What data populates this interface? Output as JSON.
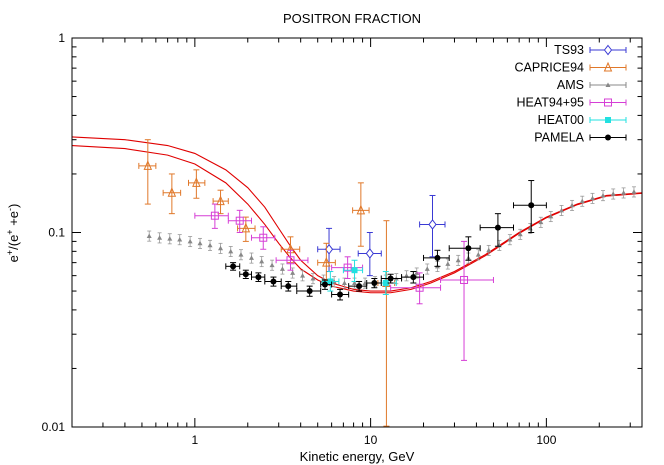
{
  "chart_data": {
    "type": "scatter",
    "title": "POSITRON FRACTION",
    "xlabel": "Kinetic energy, GeV",
    "ylabel_parts": [
      "e",
      "+",
      "/(e",
      "+",
      " +e",
      "-",
      ")"
    ],
    "xscale": "log",
    "yscale": "log",
    "xlim": [
      0.2,
      350
    ],
    "ylim": [
      0.01,
      1
    ],
    "x_ticks": [
      {
        "v": 1,
        "label": "1"
      },
      {
        "v": 10,
        "label": "10"
      },
      {
        "v": 100,
        "label": "100"
      }
    ],
    "y_ticks": [
      {
        "v": 0.01,
        "label": "0.01"
      },
      {
        "v": 0.1,
        "label": "0.1"
      },
      {
        "v": 1,
        "label": "1"
      }
    ],
    "legend_position": "top-right",
    "series": [
      {
        "name": "TS93",
        "color": "#3a3ad4",
        "marker": "diamond-open",
        "points": [
          {
            "x": 5.8,
            "y": 0.082,
            "ylo": 0.063,
            "yhi": 0.105,
            "xlo": 5.0,
            "xhi": 6.7
          },
          {
            "x": 9.9,
            "y": 0.078,
            "ylo": 0.06,
            "yhi": 0.1,
            "xlo": 8.5,
            "xhi": 11.5
          },
          {
            "x": 22.5,
            "y": 0.11,
            "ylo": 0.075,
            "yhi": 0.155,
            "xlo": 19,
            "xhi": 26.5
          }
        ]
      },
      {
        "name": "CAPRICE94",
        "color": "#e0782a",
        "marker": "triangle-open",
        "points": [
          {
            "x": 0.54,
            "y": 0.22,
            "ylo": 0.14,
            "yhi": 0.3,
            "xlo": 0.48,
            "xhi": 0.6
          },
          {
            "x": 0.74,
            "y": 0.16,
            "ylo": 0.125,
            "yhi": 0.2,
            "xlo": 0.66,
            "xhi": 0.83
          },
          {
            "x": 1.02,
            "y": 0.18,
            "ylo": 0.15,
            "yhi": 0.21,
            "xlo": 0.92,
            "xhi": 1.14
          },
          {
            "x": 1.4,
            "y": 0.145,
            "ylo": 0.125,
            "yhi": 0.165,
            "xlo": 1.27,
            "xhi": 1.55
          },
          {
            "x": 1.95,
            "y": 0.105,
            "ylo": 0.09,
            "yhi": 0.12,
            "xlo": 1.75,
            "xhi": 2.2
          },
          {
            "x": 3.5,
            "y": 0.082,
            "ylo": 0.07,
            "yhi": 0.095,
            "xlo": 3.1,
            "xhi": 3.95
          },
          {
            "x": 5.6,
            "y": 0.07,
            "ylo": 0.055,
            "yhi": 0.088,
            "xlo": 5.0,
            "xhi": 6.3
          },
          {
            "x": 8.8,
            "y": 0.13,
            "ylo": 0.085,
            "yhi": 0.18,
            "xlo": 7.9,
            "xhi": 9.8
          },
          {
            "x": 12.3,
            "y": 0.055,
            "ylo": 0.0101,
            "yhi": 0.115,
            "xlo": 11.0,
            "xhi": 13.7
          }
        ]
      },
      {
        "name": "AMS",
        "color": "#888888",
        "marker": "triangle-filled",
        "points": [
          {
            "x": 0.55,
            "y": 0.096
          },
          {
            "x": 0.63,
            "y": 0.094
          },
          {
            "x": 0.72,
            "y": 0.093
          },
          {
            "x": 0.82,
            "y": 0.092
          },
          {
            "x": 0.94,
            "y": 0.09
          },
          {
            "x": 1.07,
            "y": 0.088
          },
          {
            "x": 1.22,
            "y": 0.086
          },
          {
            "x": 1.4,
            "y": 0.083
          },
          {
            "x": 1.6,
            "y": 0.08
          },
          {
            "x": 1.83,
            "y": 0.077
          },
          {
            "x": 2.1,
            "y": 0.074
          },
          {
            "x": 2.4,
            "y": 0.071
          },
          {
            "x": 2.75,
            "y": 0.068
          },
          {
            "x": 3.15,
            "y": 0.065
          },
          {
            "x": 3.6,
            "y": 0.062
          },
          {
            "x": 4.1,
            "y": 0.06
          },
          {
            "x": 4.7,
            "y": 0.058
          },
          {
            "x": 5.4,
            "y": 0.057
          },
          {
            "x": 6.2,
            "y": 0.056
          },
          {
            "x": 7.1,
            "y": 0.055
          },
          {
            "x": 8.1,
            "y": 0.055
          },
          {
            "x": 9.3,
            "y": 0.055
          },
          {
            "x": 10.6,
            "y": 0.056
          },
          {
            "x": 12.2,
            "y": 0.057
          },
          {
            "x": 14,
            "y": 0.058
          },
          {
            "x": 16,
            "y": 0.06
          },
          {
            "x": 18.3,
            "y": 0.062
          },
          {
            "x": 21,
            "y": 0.065
          },
          {
            "x": 24,
            "y": 0.067
          },
          {
            "x": 27.5,
            "y": 0.069
          },
          {
            "x": 31.5,
            "y": 0.072
          },
          {
            "x": 36,
            "y": 0.074
          },
          {
            "x": 41,
            "y": 0.077
          },
          {
            "x": 47,
            "y": 0.081
          },
          {
            "x": 54,
            "y": 0.086
          },
          {
            "x": 62,
            "y": 0.092
          },
          {
            "x": 71,
            "y": 0.098
          },
          {
            "x": 81,
            "y": 0.105
          },
          {
            "x": 93,
            "y": 0.113
          },
          {
            "x": 106,
            "y": 0.121
          },
          {
            "x": 122,
            "y": 0.13
          },
          {
            "x": 140,
            "y": 0.138
          },
          {
            "x": 160,
            "y": 0.145
          },
          {
            "x": 183,
            "y": 0.15
          },
          {
            "x": 210,
            "y": 0.155
          },
          {
            "x": 240,
            "y": 0.158
          },
          {
            "x": 275,
            "y": 0.16
          },
          {
            "x": 315,
            "y": 0.162
          }
        ]
      },
      {
        "name": "HEAT94+95",
        "color": "#d63fd6",
        "marker": "square-open",
        "points": [
          {
            "x": 1.3,
            "y": 0.122,
            "ylo": 0.105,
            "yhi": 0.14,
            "xlo": 1.0,
            "xhi": 1.55
          },
          {
            "x": 1.8,
            "y": 0.115,
            "ylo": 0.1,
            "yhi": 0.13,
            "xlo": 1.55,
            "xhi": 2.1
          },
          {
            "x": 2.45,
            "y": 0.094,
            "ylo": 0.082,
            "yhi": 0.107,
            "xlo": 2.1,
            "xhi": 2.85
          },
          {
            "x": 3.5,
            "y": 0.072,
            "ylo": 0.064,
            "yhi": 0.081,
            "xlo": 2.9,
            "xhi": 4.4
          },
          {
            "x": 7.4,
            "y": 0.066,
            "ylo": 0.058,
            "yhi": 0.075,
            "xlo": 6.0,
            "xhi": 9.0
          },
          {
            "x": 19,
            "y": 0.052,
            "ylo": 0.043,
            "yhi": 0.062,
            "xlo": 13,
            "xhi": 25
          },
          {
            "x": 34,
            "y": 0.057,
            "ylo": 0.022,
            "yhi": 0.09,
            "xlo": 25,
            "xhi": 50
          }
        ]
      },
      {
        "name": "HEAT00",
        "color": "#22e0e0",
        "marker": "square-filled",
        "points": [
          {
            "x": 5.9,
            "y": 0.056,
            "ylo": 0.05,
            "yhi": 0.063,
            "xlo": 5.3,
            "xhi": 6.6
          },
          {
            "x": 8.1,
            "y": 0.064,
            "ylo": 0.056,
            "yhi": 0.072,
            "xlo": 7.0,
            "xhi": 9.0
          },
          {
            "x": 12.2,
            "y": 0.055,
            "ylo": 0.048,
            "yhi": 0.063,
            "xlo": 10.5,
            "xhi": 14.0
          }
        ]
      },
      {
        "name": "PAMELA",
        "color": "#000000",
        "marker": "circle-filled",
        "points": [
          {
            "x": 1.65,
            "y": 0.067,
            "ylo": 0.064,
            "yhi": 0.07,
            "xlo": 1.5,
            "xhi": 1.8
          },
          {
            "x": 1.95,
            "y": 0.061,
            "ylo": 0.058,
            "yhi": 0.064,
            "xlo": 1.8,
            "xhi": 2.1
          },
          {
            "x": 2.3,
            "y": 0.059,
            "ylo": 0.056,
            "yhi": 0.062,
            "xlo": 2.1,
            "xhi": 2.5
          },
          {
            "x": 2.8,
            "y": 0.056,
            "ylo": 0.053,
            "yhi": 0.059,
            "xlo": 2.5,
            "xhi": 3.1
          },
          {
            "x": 3.4,
            "y": 0.053,
            "ylo": 0.05,
            "yhi": 0.056,
            "xlo": 3.1,
            "xhi": 3.8
          },
          {
            "x": 4.5,
            "y": 0.05,
            "ylo": 0.047,
            "yhi": 0.053,
            "xlo": 3.8,
            "xhi": 5.2
          },
          {
            "x": 5.5,
            "y": 0.054,
            "ylo": 0.051,
            "yhi": 0.057,
            "xlo": 5.2,
            "xhi": 6.0
          },
          {
            "x": 6.7,
            "y": 0.048,
            "ylo": 0.045,
            "yhi": 0.051,
            "xlo": 6.0,
            "xhi": 7.5
          },
          {
            "x": 8.6,
            "y": 0.053,
            "ylo": 0.05,
            "yhi": 0.056,
            "xlo": 7.5,
            "xhi": 9.5
          },
          {
            "x": 10.5,
            "y": 0.055,
            "ylo": 0.052,
            "yhi": 0.058,
            "xlo": 9.5,
            "xhi": 11.5
          },
          {
            "x": 13,
            "y": 0.058,
            "ylo": 0.055,
            "yhi": 0.061,
            "xlo": 11.5,
            "xhi": 15
          },
          {
            "x": 17.5,
            "y": 0.059,
            "ylo": 0.055,
            "yhi": 0.063,
            "xlo": 15,
            "xhi": 20
          },
          {
            "x": 24,
            "y": 0.074,
            "ylo": 0.067,
            "yhi": 0.081,
            "xlo": 20,
            "xhi": 28
          },
          {
            "x": 36,
            "y": 0.083,
            "ylo": 0.072,
            "yhi": 0.095,
            "xlo": 28,
            "xhi": 42
          },
          {
            "x": 53,
            "y": 0.106,
            "ylo": 0.085,
            "yhi": 0.125,
            "xlo": 42,
            "xhi": 65
          },
          {
            "x": 82,
            "y": 0.138,
            "ylo": 0.1,
            "yhi": 0.185,
            "xlo": 65,
            "xhi": 100
          }
        ]
      }
    ],
    "curves": [
      {
        "color": "#e00000",
        "points": [
          {
            "x": 0.2,
            "y": 0.31
          },
          {
            "x": 0.4,
            "y": 0.3
          },
          {
            "x": 0.7,
            "y": 0.28
          },
          {
            "x": 1.0,
            "y": 0.255
          },
          {
            "x": 1.5,
            "y": 0.21
          },
          {
            "x": 2.0,
            "y": 0.17
          },
          {
            "x": 2.5,
            "y": 0.135
          },
          {
            "x": 3.0,
            "y": 0.105
          },
          {
            "x": 3.5,
            "y": 0.085
          },
          {
            "x": 4.0,
            "y": 0.072
          },
          {
            "x": 5.0,
            "y": 0.06
          },
          {
            "x": 6.0,
            "y": 0.055
          },
          {
            "x": 8.0,
            "y": 0.051
          },
          {
            "x": 10.0,
            "y": 0.05
          },
          {
            "x": 13.0,
            "y": 0.05
          },
          {
            "x": 17.0,
            "y": 0.052
          },
          {
            "x": 22.0,
            "y": 0.056
          },
          {
            "x": 30.0,
            "y": 0.063
          },
          {
            "x": 45.0,
            "y": 0.077
          },
          {
            "x": 70.0,
            "y": 0.1
          },
          {
            "x": 100.0,
            "y": 0.12
          },
          {
            "x": 150.0,
            "y": 0.14
          },
          {
            "x": 220.0,
            "y": 0.155
          },
          {
            "x": 350.0,
            "y": 0.16
          }
        ]
      },
      {
        "color": "#e00000",
        "points": [
          {
            "x": 0.2,
            "y": 0.28
          },
          {
            "x": 0.4,
            "y": 0.27
          },
          {
            "x": 0.7,
            "y": 0.25
          },
          {
            "x": 1.0,
            "y": 0.225
          },
          {
            "x": 1.5,
            "y": 0.18
          },
          {
            "x": 2.0,
            "y": 0.14
          },
          {
            "x": 2.5,
            "y": 0.11
          },
          {
            "x": 3.0,
            "y": 0.088
          },
          {
            "x": 3.5,
            "y": 0.074
          },
          {
            "x": 4.0,
            "y": 0.065
          },
          {
            "x": 5.0,
            "y": 0.057
          },
          {
            "x": 6.0,
            "y": 0.053
          },
          {
            "x": 8.0,
            "y": 0.05
          },
          {
            "x": 10.0,
            "y": 0.049
          },
          {
            "x": 13.0,
            "y": 0.049
          },
          {
            "x": 17.0,
            "y": 0.051
          },
          {
            "x": 22.0,
            "y": 0.055
          },
          {
            "x": 30.0,
            "y": 0.062
          },
          {
            "x": 45.0,
            "y": 0.076
          },
          {
            "x": 70.0,
            "y": 0.099
          },
          {
            "x": 100.0,
            "y": 0.119
          },
          {
            "x": 150.0,
            "y": 0.139
          },
          {
            "x": 220.0,
            "y": 0.154
          },
          {
            "x": 350.0,
            "y": 0.159
          }
        ]
      }
    ]
  }
}
